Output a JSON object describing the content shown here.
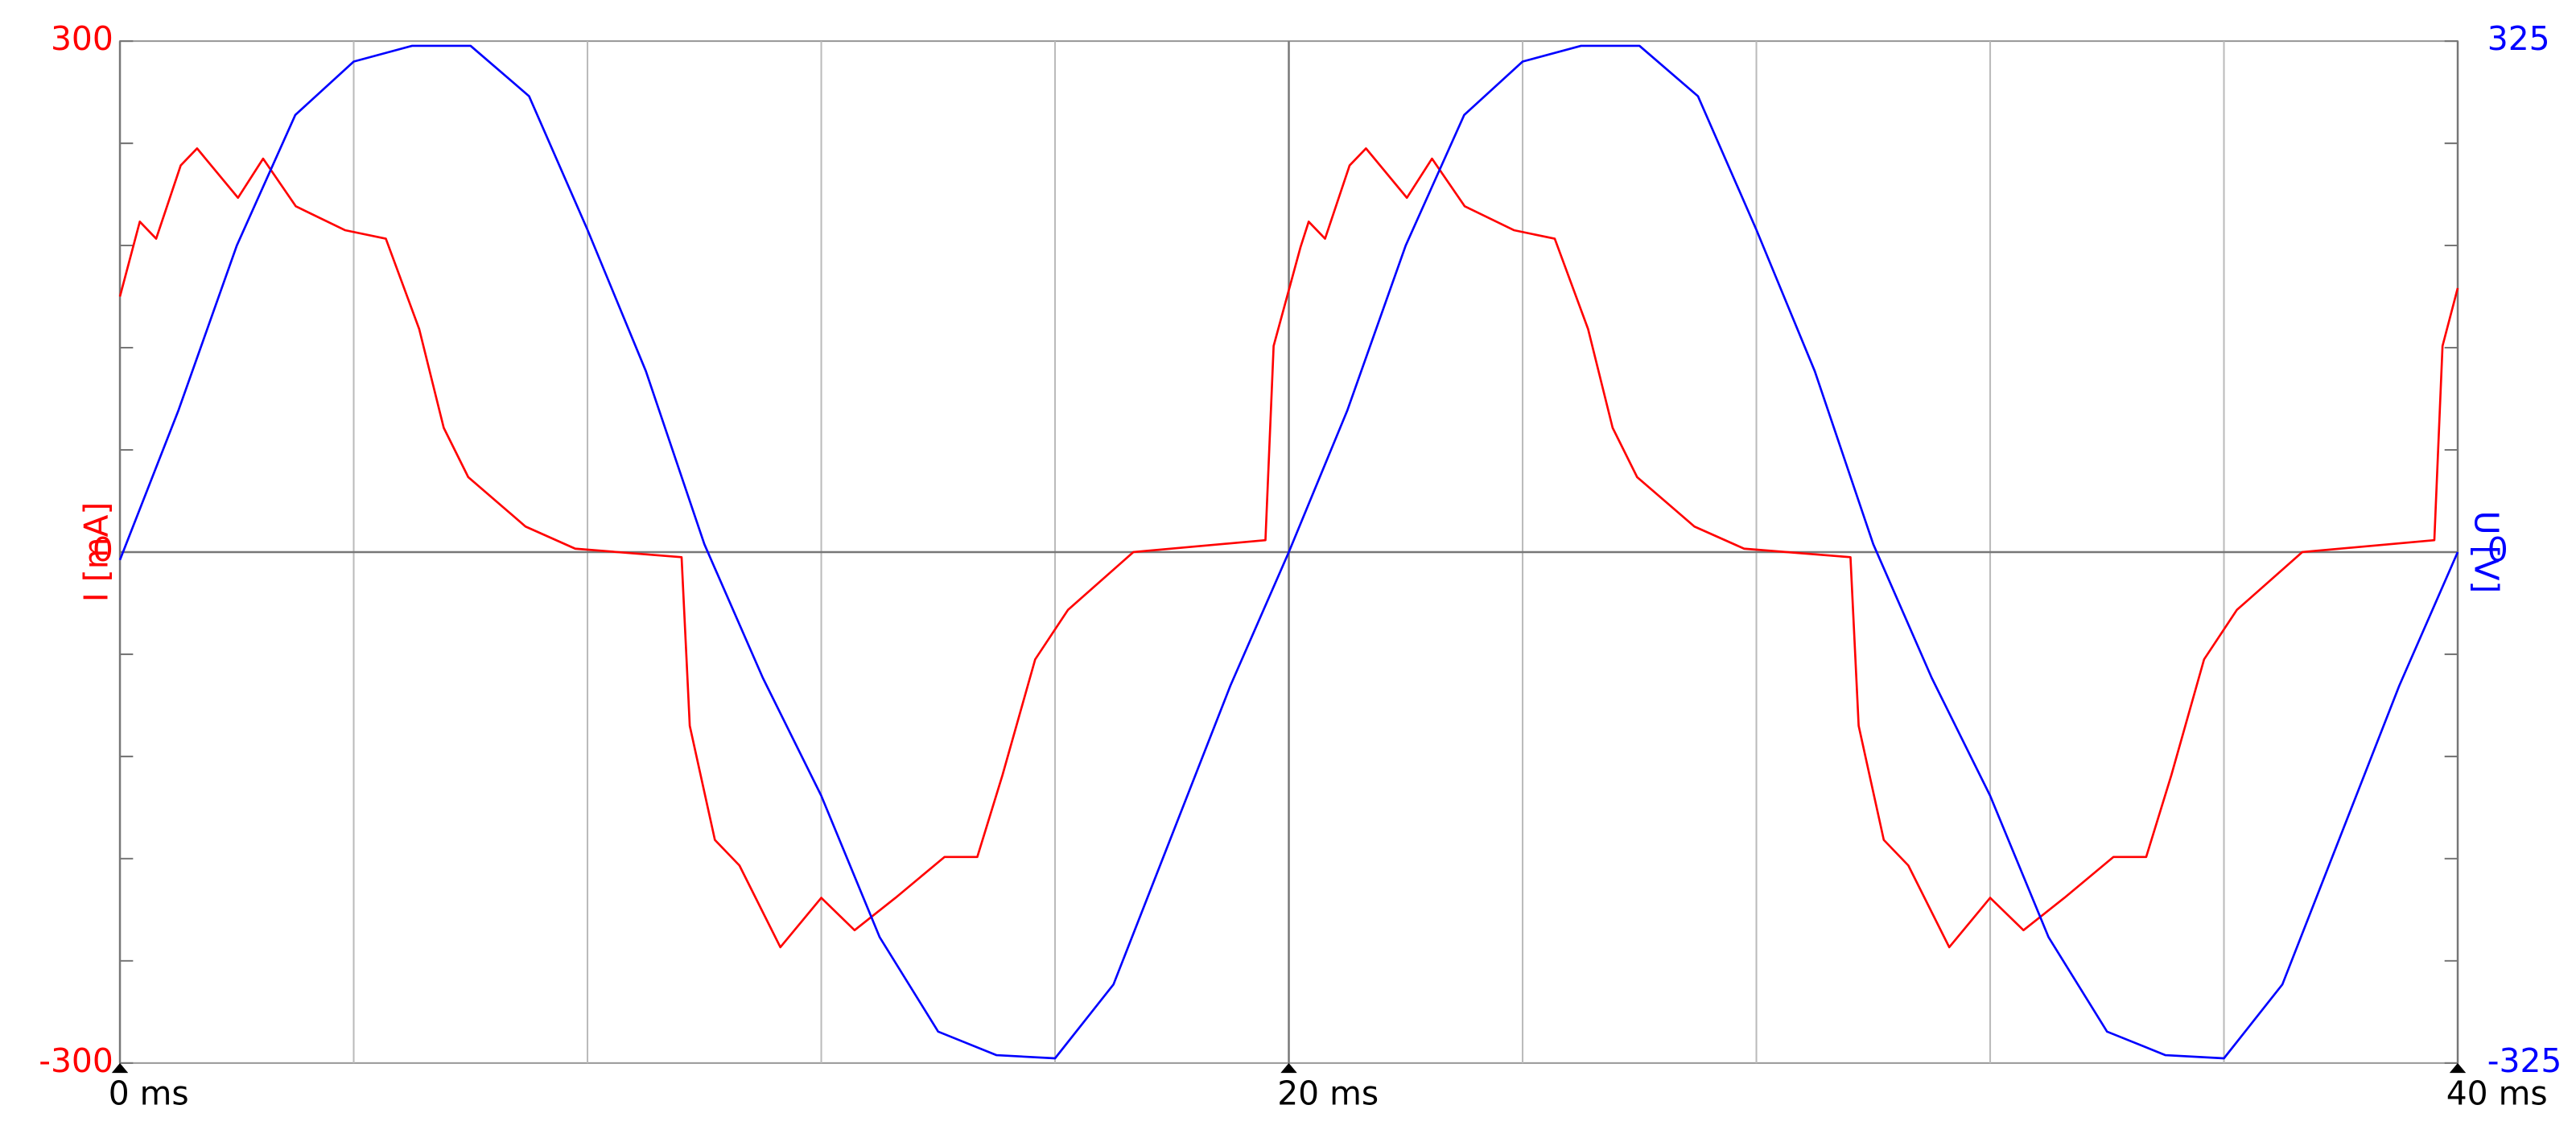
{
  "chart_data": {
    "type": "line",
    "xlim": [
      0,
      40
    ],
    "xticks": [
      {
        "value": 0,
        "label": "0 ms"
      },
      {
        "value": 20,
        "label": "20 ms"
      },
      {
        "value": 40,
        "label": "40 ms"
      }
    ],
    "xgrid": [
      0,
      4,
      8,
      12,
      16,
      20,
      24,
      28,
      32,
      36,
      40
    ],
    "ylim": [
      -300,
      300
    ],
    "yticks": [
      -300,
      0,
      300
    ],
    "ygrid": [
      -300,
      -240,
      -180,
      -120,
      -60,
      0,
      60,
      120,
      180,
      240,
      300
    ],
    "y2lim": [
      -325,
      325
    ],
    "y2ticks": [
      -325,
      0,
      325
    ],
    "ylabel": "I [mA]",
    "y2label": "U [V]",
    "series": [
      {
        "name": "I [mA]",
        "color": "#ff0000",
        "axis": "y",
        "x": [
          0,
          0.34,
          0.62,
          1.04,
          1.32,
          2.02,
          2.45,
          3.01,
          3.85,
          4.55,
          5.12,
          5.54,
          5.96,
          6.94,
          7.79,
          9.61,
          9.75,
          10.18,
          10.6,
          11.3,
          12.0,
          12.57,
          13.27,
          14.11,
          14.67,
          15.1,
          15.66,
          16.22,
          17.34,
          19.6,
          19.74,
          20.2,
          20.34,
          20.62,
          21.04,
          21.32,
          22.02,
          22.45,
          23.01,
          23.85,
          24.55,
          25.12,
          25.54,
          25.96,
          26.94,
          27.79,
          29.61,
          29.75,
          30.18,
          30.6,
          31.3,
          32.0,
          32.57,
          33.27,
          34.11,
          34.67,
          35.1,
          35.66,
          36.22,
          37.34,
          39.6,
          39.74,
          40
        ],
        "values": [
          150,
          194,
          184,
          227,
          237,
          208,
          231,
          203,
          189,
          184,
          131,
          73,
          44,
          15,
          2,
          -3,
          -102,
          -169,
          -184,
          -232,
          -203,
          -222,
          -203,
          -179,
          -179,
          -131,
          -63,
          -34,
          0,
          7,
          121,
          179,
          194,
          184,
          227,
          237,
          208,
          231,
          203,
          189,
          184,
          131,
          73,
          44,
          15,
          2,
          -3,
          -102,
          -169,
          -184,
          -232,
          -203,
          -222,
          -203,
          -179,
          -179,
          -131,
          -63,
          -34,
          0,
          7,
          121,
          155
        ]
      },
      {
        "name": "U [V]",
        "color": "#0000ff",
        "axis": "y2",
        "x": [
          0,
          1,
          2,
          3,
          4,
          5,
          6,
          7,
          8,
          9,
          10,
          11,
          12,
          13,
          14,
          15,
          16,
          17,
          18,
          19,
          20,
          21,
          22,
          23,
          24,
          25,
          26,
          27,
          28,
          29,
          30,
          31,
          32,
          33,
          34,
          35,
          36,
          37,
          38,
          39,
          40
        ],
        "values": [
          -5,
          90,
          195,
          278,
          312,
          322,
          322,
          290,
          205,
          115,
          5,
          -80,
          -155,
          -245,
          -305,
          -320,
          -322,
          -275,
          -180,
          -85,
          0,
          90,
          195,
          278,
          312,
          322,
          322,
          290,
          205,
          115,
          5,
          -80,
          -155,
          -245,
          -305,
          -320,
          -322,
          -275,
          -180,
          -85,
          0
        ]
      }
    ]
  }
}
